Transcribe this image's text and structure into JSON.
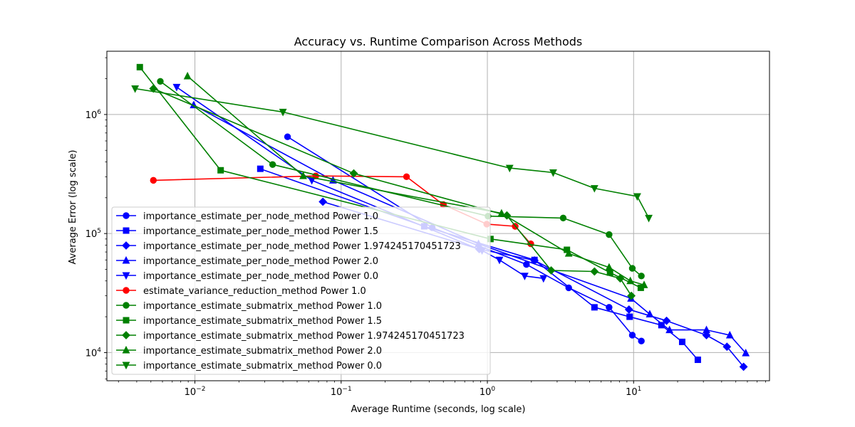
{
  "chart_data": {
    "type": "line",
    "title": "Accuracy vs. Runtime Comparison Across Methods",
    "xlabel": "Average Runtime (seconds, log scale)",
    "ylabel": "Average Error (log scale)",
    "xscale": "log",
    "yscale": "log",
    "xlim": [
      0.0025,
      85
    ],
    "ylim": [
      5800,
      3400000
    ],
    "grid": true,
    "legend_location": "lower-left",
    "x_ticks": [
      {
        "value": 0.01,
        "base": "10",
        "exp": "−2"
      },
      {
        "value": 0.1,
        "base": "10",
        "exp": "−1"
      },
      {
        "value": 1,
        "base": "10",
        "exp": "0"
      },
      {
        "value": 10,
        "base": "10",
        "exp": "1"
      }
    ],
    "y_ticks": [
      {
        "value": 10000,
        "base": "10",
        "exp": "4"
      },
      {
        "value": 100000,
        "base": "10",
        "exp": "5"
      },
      {
        "value": 1000000,
        "base": "10",
        "exp": "6"
      }
    ],
    "series": [
      {
        "name": "importance_estimate_per_node_method Power 1.0",
        "color": "#0000ff",
        "marker": "circle",
        "x": [
          0.043,
          0.42,
          1.85,
          3.6,
          6.8,
          9.8,
          11.3
        ],
        "y": [
          650000,
          112000,
          55000,
          35000,
          24000,
          14000,
          12500
        ]
      },
      {
        "name": "importance_estimate_per_node_method Power 1.5",
        "color": "#0000ff",
        "marker": "square",
        "x": [
          0.028,
          0.37,
          2.1,
          5.4,
          9.4,
          15.5,
          21.5,
          27.5
        ],
        "y": [
          350000,
          115000,
          60000,
          24000,
          20000,
          17000,
          12300,
          8700
        ]
      },
      {
        "name": "importance_estimate_per_node_method Power 1.974245170451723",
        "color": "#0000ff",
        "marker": "diamond",
        "x": [
          0.075,
          0.88,
          2.1,
          9.3,
          16.8,
          31.5,
          43.5,
          56.5
        ],
        "y": [
          185000,
          74000,
          59500,
          23000,
          18500,
          14000,
          11200,
          7600
        ]
      },
      {
        "name": "importance_estimate_per_node_method Power 2.0",
        "color": "#0000ff",
        "marker": "triangle-up",
        "x": [
          0.0098,
          0.088,
          0.87,
          9.6,
          12.9,
          17.6,
          31.5,
          45.5,
          58.5
        ],
        "y": [
          1200000,
          280000,
          82000,
          28500,
          21000,
          15500,
          15500,
          14000,
          9900
        ]
      },
      {
        "name": "importance_estimate_per_node_method Power 0.0",
        "color": "#0000ff",
        "marker": "triangle-down",
        "x": [
          0.0075,
          0.063,
          0.92,
          1.21,
          1.8,
          2.42
        ],
        "y": [
          1700000,
          280000,
          72000,
          60000,
          44000,
          42000
        ]
      },
      {
        "name": "estimate_variance_reduction_method Power 1.0",
        "color": "#ff0000",
        "marker": "circle",
        "x": [
          0.0052,
          0.067,
          0.28,
          0.5,
          0.99,
          1.55,
          1.98
        ],
        "y": [
          280000,
          305000,
          300000,
          175000,
          120000,
          115000,
          82000
        ]
      },
      {
        "name": "importance_estimate_submatrix_method Power 1.0",
        "color": "#008000",
        "marker": "circle",
        "x": [
          0.0058,
          0.034,
          1.01,
          3.3,
          6.8,
          9.8,
          11.3
        ],
        "y": [
          1900000,
          380000,
          140000,
          135000,
          98000,
          51000,
          44000
        ]
      },
      {
        "name": "importance_estimate_submatrix_method Power 1.5",
        "color": "#008000",
        "marker": "square",
        "x": [
          0.0042,
          0.015,
          1.05,
          3.5,
          6.9,
          11.2
        ],
        "y": [
          2500000,
          340000,
          90000,
          73000,
          47000,
          35000
        ]
      },
      {
        "name": "importance_estimate_submatrix_method Power 1.974245170451723",
        "color": "#008000",
        "marker": "diamond",
        "x": [
          0.0052,
          0.122,
          1.36,
          2.73,
          5.4,
          8.1,
          9.65
        ],
        "y": [
          1650000,
          320000,
          142000,
          49000,
          48000,
          42000,
          30000
        ]
      },
      {
        "name": "importance_estimate_submatrix_method Power 2.0",
        "color": "#008000",
        "marker": "triangle-up",
        "x": [
          0.0089,
          0.055,
          1.25,
          3.6,
          6.8,
          9.5,
          11.8
        ],
        "y": [
          2100000,
          305000,
          148000,
          68000,
          52000,
          40000,
          37000
        ]
      },
      {
        "name": "importance_estimate_submatrix_method Power 0.0",
        "color": "#008000",
        "marker": "triangle-down",
        "x": [
          0.0039,
          0.04,
          1.42,
          2.82,
          5.4,
          10.6,
          12.7
        ],
        "y": [
          1650000,
          1050000,
          355000,
          325000,
          240000,
          205000,
          135000
        ]
      }
    ]
  }
}
